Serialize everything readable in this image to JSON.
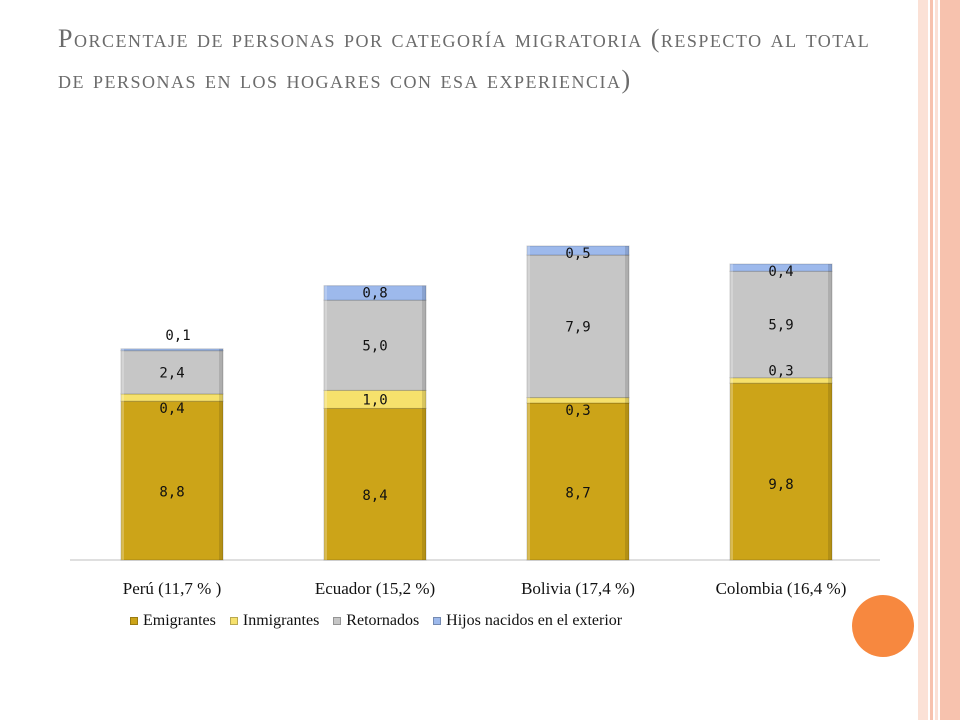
{
  "title": "Porcentaje de personas por categoría migratoria (respecto al total de personas en los hogares con esa experiencia)",
  "colors": {
    "emigrantes": "#cca418",
    "inmigrantes": "#f6e16c",
    "retornados": "#c6c6c6",
    "hijos": "#9db9ec",
    "accent_circle": "#f7883f",
    "stripe": "#f7c2ae"
  },
  "chart_data": {
    "type": "bar",
    "stacked": true,
    "categories": [
      "Perú  (11,7 % )",
      "Ecuador (15,2 %)",
      "Bolivia (17,4 %)",
      "Colombia (16,4 %)"
    ],
    "series": [
      {
        "name": "Emigrantes",
        "values": [
          8.8,
          8.4,
          8.7,
          9.8
        ],
        "labels": [
          "8,8",
          "8,4",
          "8,7",
          "9,8"
        ]
      },
      {
        "name": "Inmigrantes",
        "values": [
          0.4,
          1.0,
          0.3,
          0.3
        ],
        "labels": [
          "0,4",
          "1,0",
          "0,3",
          "0,3"
        ]
      },
      {
        "name": "Retornados",
        "values": [
          2.4,
          5.0,
          7.9,
          5.9
        ],
        "labels": [
          "2,4",
          "5,0",
          "7,9",
          "5,9"
        ]
      },
      {
        "name": "Hijos  nacidos en el exterior",
        "values": [
          0.1,
          0.8,
          0.5,
          0.4
        ],
        "labels": [
          "0,1",
          "0,8",
          "0,5",
          "0,4"
        ]
      }
    ],
    "ylim": [
      0,
      17.4
    ],
    "grid": false,
    "legend": "bottom"
  }
}
